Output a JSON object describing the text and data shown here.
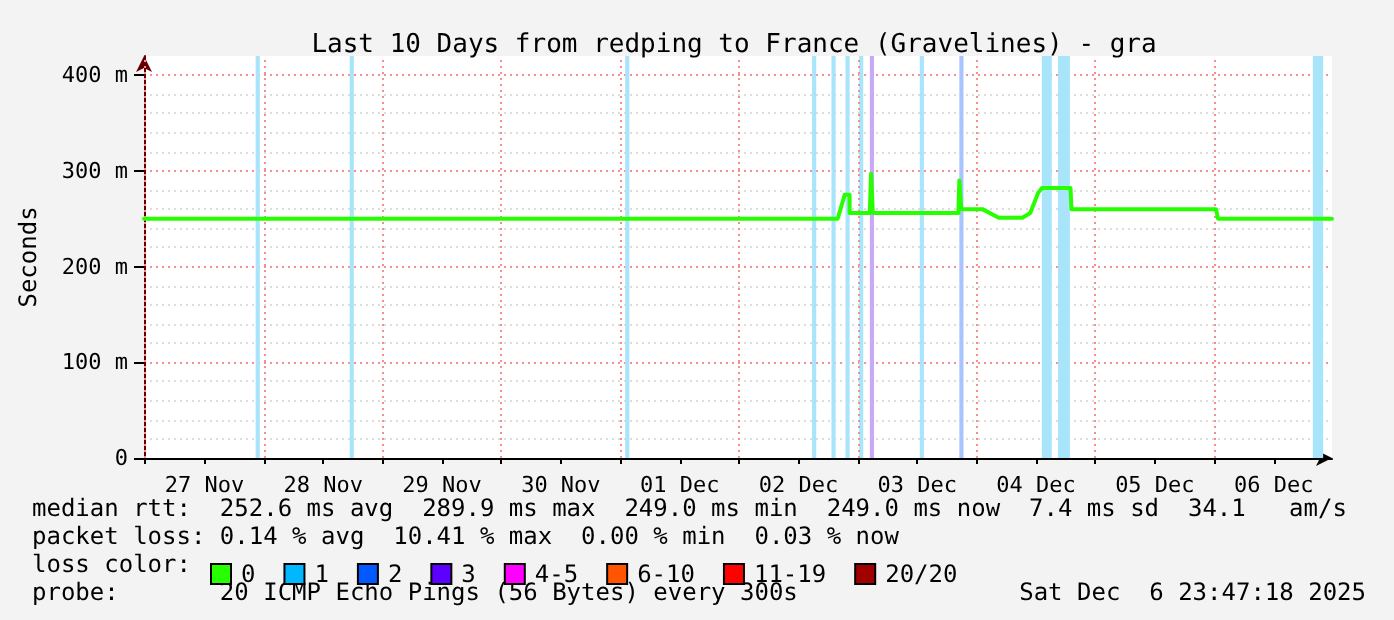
{
  "chart_data": {
    "type": "line",
    "title": "Last 10 Days from redping to France (Gravelines) - gra",
    "ylabel": "Seconds",
    "legend_title": "loss color:",
    "legend": "bottom",
    "grid": true,
    "marker": "none",
    "line_style": "solid",
    "xlim": [
      "2025-11-26T23:47",
      "2025-12-06T23:47"
    ],
    "xticks": [
      {
        "value": "2025-11-27T00:00",
        "label": null
      },
      {
        "value": "2025-11-27T12:00",
        "label": "27 Nov"
      },
      {
        "value": "2025-11-28T00:00",
        "label": null
      },
      {
        "value": "2025-11-28T12:00",
        "label": "28 Nov"
      },
      {
        "value": "2025-11-29T00:00",
        "label": null
      },
      {
        "value": "2025-11-29T12:00",
        "label": "29 Nov"
      },
      {
        "value": "2025-11-30T00:00",
        "label": null
      },
      {
        "value": "2025-11-30T12:00",
        "label": "30 Nov"
      },
      {
        "value": "2025-12-01T00:00",
        "label": null
      },
      {
        "value": "2025-12-01T12:00",
        "label": "01 Dec"
      },
      {
        "value": "2025-12-02T00:00",
        "label": null
      },
      {
        "value": "2025-12-02T12:00",
        "label": "02 Dec"
      },
      {
        "value": "2025-12-03T00:00",
        "label": null
      },
      {
        "value": "2025-12-03T12:00",
        "label": "03 Dec"
      },
      {
        "value": "2025-12-04T00:00",
        "label": null
      },
      {
        "value": "2025-12-04T12:00",
        "label": "04 Dec"
      },
      {
        "value": "2025-12-05T00:00",
        "label": null
      },
      {
        "value": "2025-12-05T12:00",
        "label": "05 Dec"
      },
      {
        "value": "2025-12-06T00:00",
        "label": null
      },
      {
        "value": "2025-12-06T12:00",
        "label": "06 Dec"
      }
    ],
    "ylim": [
      0,
      420
    ],
    "yticks": [
      0,
      {
        "value": 100,
        "label": "100 m"
      },
      {
        "value": 200,
        "label": "200 m"
      },
      {
        "value": 300,
        "label": "300 m"
      },
      {
        "value": 400,
        "label": "400 m"
      }
    ],
    "x": [
      "2025-11-26T23:47",
      "2025-12-02T19:55",
      "2025-12-02T21:20",
      "2025-12-02T22:19",
      "2025-12-02T22:20",
      "2025-12-03T02:24",
      "2025-12-03T02:40",
      "2025-12-03T03:01",
      "2025-12-03T20:18",
      "2025-12-03T20:30",
      "2025-12-03T20:53",
      "2025-12-04T01:09",
      "2025-12-04T04:27",
      "2025-12-04T09:13",
      "2025-12-04T10:49",
      "2025-12-04T12:25",
      "2025-12-04T13:11",
      "2025-12-04T18:57",
      "2025-12-04T19:09",
      "2025-12-06T00:21",
      "2025-12-06T00:45",
      "2025-12-06T23:47"
    ],
    "series": [
      {
        "name": "0",
        "color": "#26ff00",
        "values": [
          250,
          250,
          275,
          275,
          256,
          256,
          297,
          256,
          256,
          290,
          260,
          260,
          251,
          251,
          256,
          277,
          282,
          282,
          260,
          260,
          250,
          250
        ]
      },
      {
        "name": "1",
        "color": "#00b8ff",
        "values": [
          null,
          null,
          null,
          null,
          null,
          null,
          null,
          null,
          null,
          null,
          null,
          null,
          null,
          null,
          null,
          null,
          null,
          null,
          null,
          null,
          null,
          null
        ]
      },
      {
        "name": "2",
        "color": "#0059ff",
        "values": [
          null,
          null,
          null,
          null,
          null,
          null,
          null,
          null,
          null,
          null,
          null,
          null,
          null,
          null,
          null,
          null,
          null,
          null,
          null,
          null,
          null,
          null
        ]
      },
      {
        "name": "3",
        "color": "#5e00ff",
        "values": [
          null,
          null,
          null,
          null,
          null,
          null,
          null,
          null,
          null,
          null,
          null,
          null,
          null,
          null,
          null,
          null,
          null,
          null,
          null,
          null,
          null,
          null
        ]
      },
      {
        "name": "4-5",
        "color": "#ff00ff",
        "values": [
          null,
          null,
          null,
          null,
          null,
          null,
          null,
          null,
          null,
          null,
          null,
          null,
          null,
          null,
          null,
          null,
          null,
          null,
          null,
          null,
          null,
          null
        ]
      },
      {
        "name": "6-10",
        "color": "#ff5500",
        "values": [
          null,
          null,
          null,
          null,
          null,
          null,
          null,
          null,
          null,
          null,
          null,
          null,
          null,
          null,
          null,
          null,
          null,
          null,
          null,
          null,
          null,
          null
        ]
      },
      {
        "name": "11-19",
        "color": "#ff0000",
        "values": [
          null,
          null,
          null,
          null,
          null,
          null,
          null,
          null,
          null,
          null,
          null,
          null,
          null,
          null,
          null,
          null,
          null,
          null,
          null,
          null,
          null,
          null
        ]
      },
      {
        "name": "20/20",
        "color": "#a10000",
        "values": [
          null,
          null,
          null,
          null,
          null,
          null,
          null,
          null,
          null,
          null,
          null,
          null,
          null,
          null,
          null,
          null,
          null,
          null,
          null,
          null,
          null,
          null
        ]
      }
    ],
    "bands": [
      {
        "axis": "x",
        "from": "2025-11-27T22:20",
        "to": "2025-11-27T23:10",
        "color": "#a8e4fa"
      },
      {
        "axis": "x",
        "from": "2025-11-28T17:20",
        "to": "2025-11-28T18:10",
        "color": "#a8e4fa"
      },
      {
        "axis": "x",
        "from": "2025-12-01T01:00",
        "to": "2025-12-01T01:50",
        "color": "#a8e4fa"
      },
      {
        "axis": "x",
        "from": "2025-12-02T14:45",
        "to": "2025-12-02T15:35",
        "color": "#a8e4fa"
      },
      {
        "axis": "x",
        "from": "2025-12-02T18:40",
        "to": "2025-12-02T19:30",
        "color": "#a8e4fa"
      },
      {
        "axis": "x",
        "from": "2025-12-02T21:30",
        "to": "2025-12-02T22:20",
        "color": "#a8e4fa"
      },
      {
        "axis": "x",
        "from": "2025-12-03T00:15",
        "to": "2025-12-03T01:05",
        "color": "#a8e4fa"
      },
      {
        "axis": "x",
        "from": "2025-12-03T02:25",
        "to": "2025-12-03T03:15",
        "color": "#c9a8f5"
      },
      {
        "axis": "x",
        "from": "2025-12-03T12:30",
        "to": "2025-12-03T13:20",
        "color": "#a8e4fa"
      },
      {
        "axis": "x",
        "from": "2025-12-03T20:30",
        "to": "2025-12-03T21:20",
        "color": "#a8c4ff"
      },
      {
        "axis": "x",
        "from": "2025-12-04T13:10",
        "to": "2025-12-04T15:10",
        "color": "#a8e4fa"
      },
      {
        "axis": "x",
        "from": "2025-12-04T16:25",
        "to": "2025-12-04T18:50",
        "color": "#a8e4fa"
      },
      {
        "axis": "x",
        "from": "2025-12-06T19:55",
        "to": "2025-12-06T22:00",
        "color": "#a8e4fa"
      }
    ],
    "annotations": [
      "median rtt:  252.6 ms avg  289.9 ms max  249.0 ms min  249.0 ms now  7.4 ms sd  34.1   am/s",
      "packet loss: 0.14 % avg  10.41 % max  0.00 % min  0.03 % now",
      "probe:       20 ICMP Echo Pings (56 Bytes) every 300s",
      "Sat Dec  6 23:47:18 2025"
    ]
  }
}
